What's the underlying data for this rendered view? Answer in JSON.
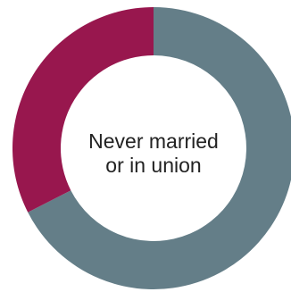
{
  "chart_data": {
    "type": "pie",
    "variant": "donut",
    "center_label": [
      "Never married",
      "or in union"
    ],
    "slices": [
      {
        "value": 67.5,
        "color": "#647e88"
      },
      {
        "value": 32.5,
        "color": "#98174e"
      }
    ],
    "start": "top",
    "direction": "clockwise",
    "legend": "none"
  }
}
